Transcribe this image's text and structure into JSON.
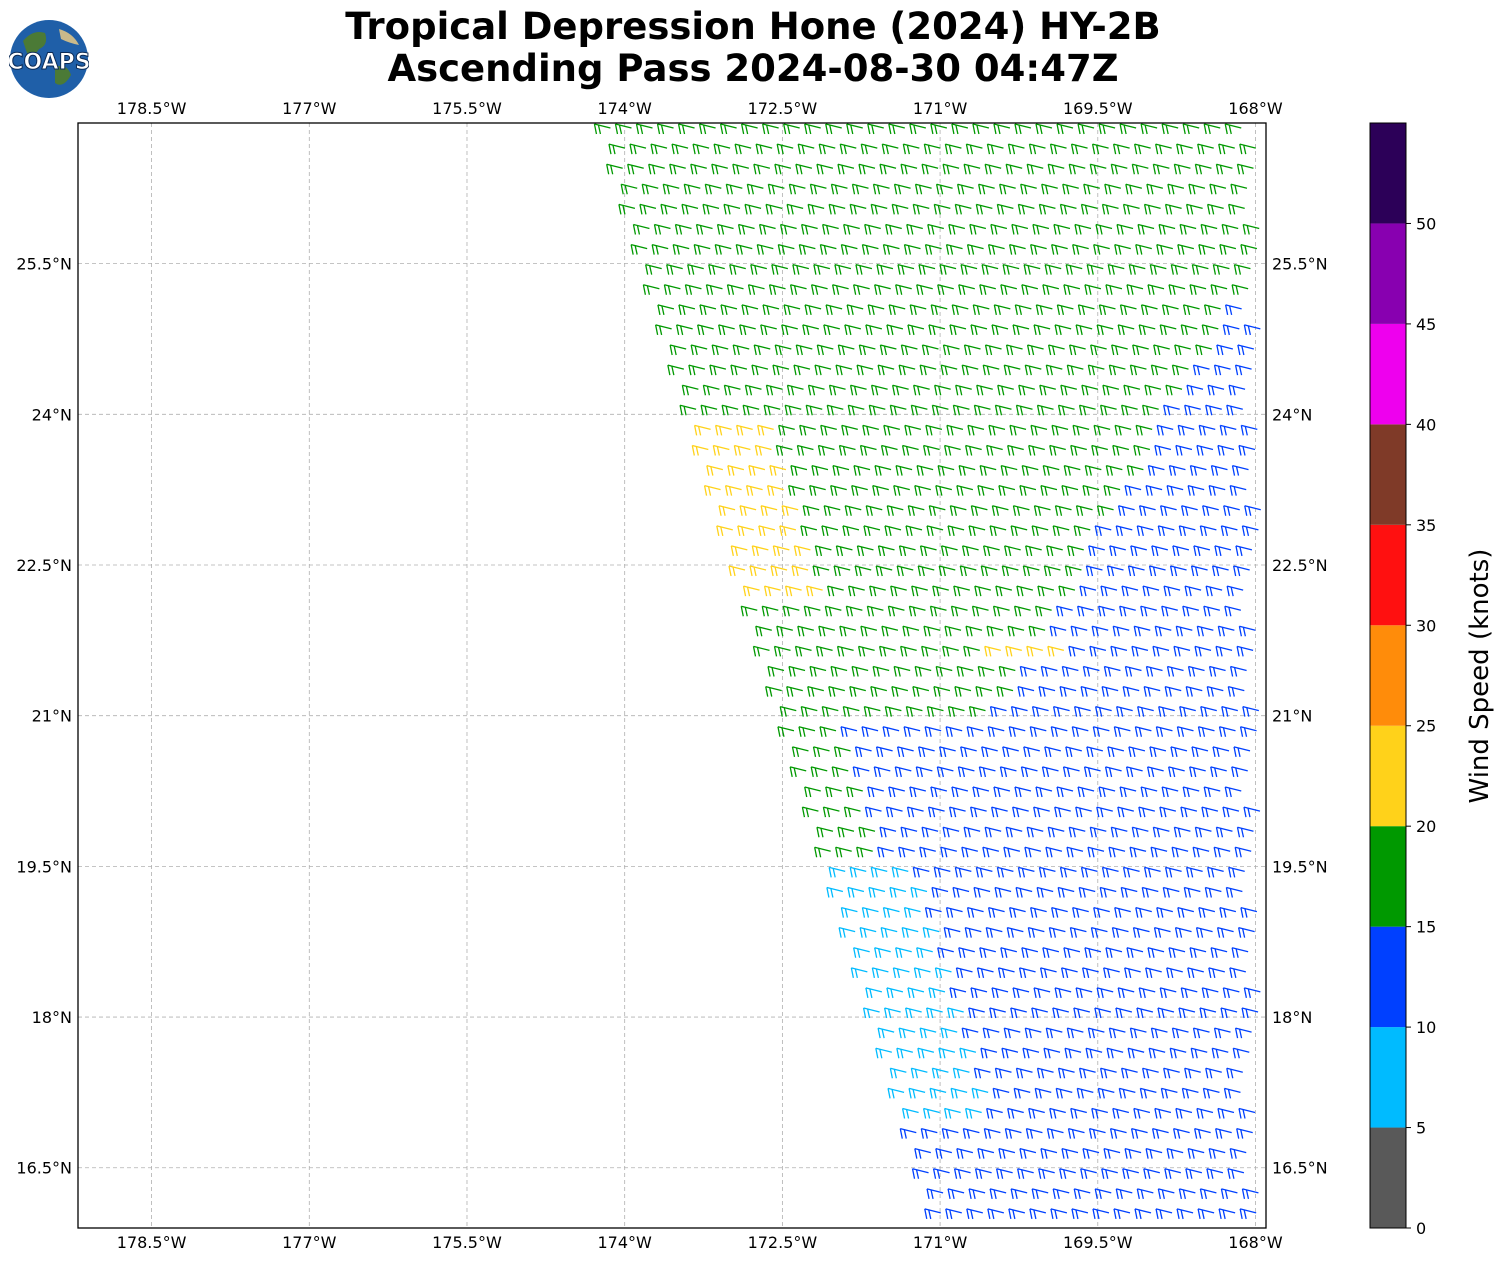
{
  "title": {
    "line1": "Tropical Depression Hone (2024) HY-2B",
    "line2": "Ascending Pass 2024-08-30 04:47Z"
  },
  "logo": {
    "text": "COAPS",
    "icon": "globe-logo-icon"
  },
  "map": {
    "lon_range": [
      -179.2,
      -167.9
    ],
    "lat_range": [
      15.9,
      26.9
    ],
    "lon_ticks": [
      "178.5°W",
      "177°W",
      "175.5°W",
      "174°W",
      "172.5°W",
      "171°W",
      "169.5°W",
      "168°W"
    ],
    "lon_tick_values": [
      -178.5,
      -177,
      -175.5,
      -174,
      -172.5,
      -171,
      -169.5,
      -168
    ],
    "lat_ticks": [
      "25.5°N",
      "24°N",
      "22.5°N",
      "21°N",
      "19.5°N",
      "18°N",
      "16.5°N"
    ],
    "lat_tick_values": [
      25.5,
      24,
      22.5,
      21,
      19.5,
      18,
      16.5
    ],
    "grid": true,
    "swath": "west edge runs from about 174°W at the top to about 171°W at the bottom; east of it the map is filled with wind barbs",
    "wind_regions": {
      "yellow": "20-25 kt near 172.7°W–172.2°W, 22.2°N–24.0°N and near 170.5°W–169.7°W, 21.7°N",
      "green": "15-20 kt over the northern and western swath",
      "blue": "10-15 kt over the eastern and southern swath",
      "cyan": "5-10 kt near 171.5°W–170.7°W, 17.0°N–19.5°N"
    }
  },
  "colorbar": {
    "label": "Wind Speed (knots)",
    "tick_labels": [
      "0",
      "5",
      "10",
      "15",
      "20",
      "25",
      "30",
      "35",
      "40",
      "45",
      "50"
    ],
    "tick_values": [
      0,
      5,
      10,
      15,
      20,
      25,
      30,
      35,
      40,
      45,
      50
    ],
    "max_value": 55,
    "colors": [
      "#595959",
      "#00bbff",
      "#0040ff",
      "#009900",
      "#ffd21a",
      "#ff8c0a",
      "#ff1010",
      "#7f3a28",
      "#ee00ee",
      "#8800b0",
      "#2c0058"
    ]
  }
}
